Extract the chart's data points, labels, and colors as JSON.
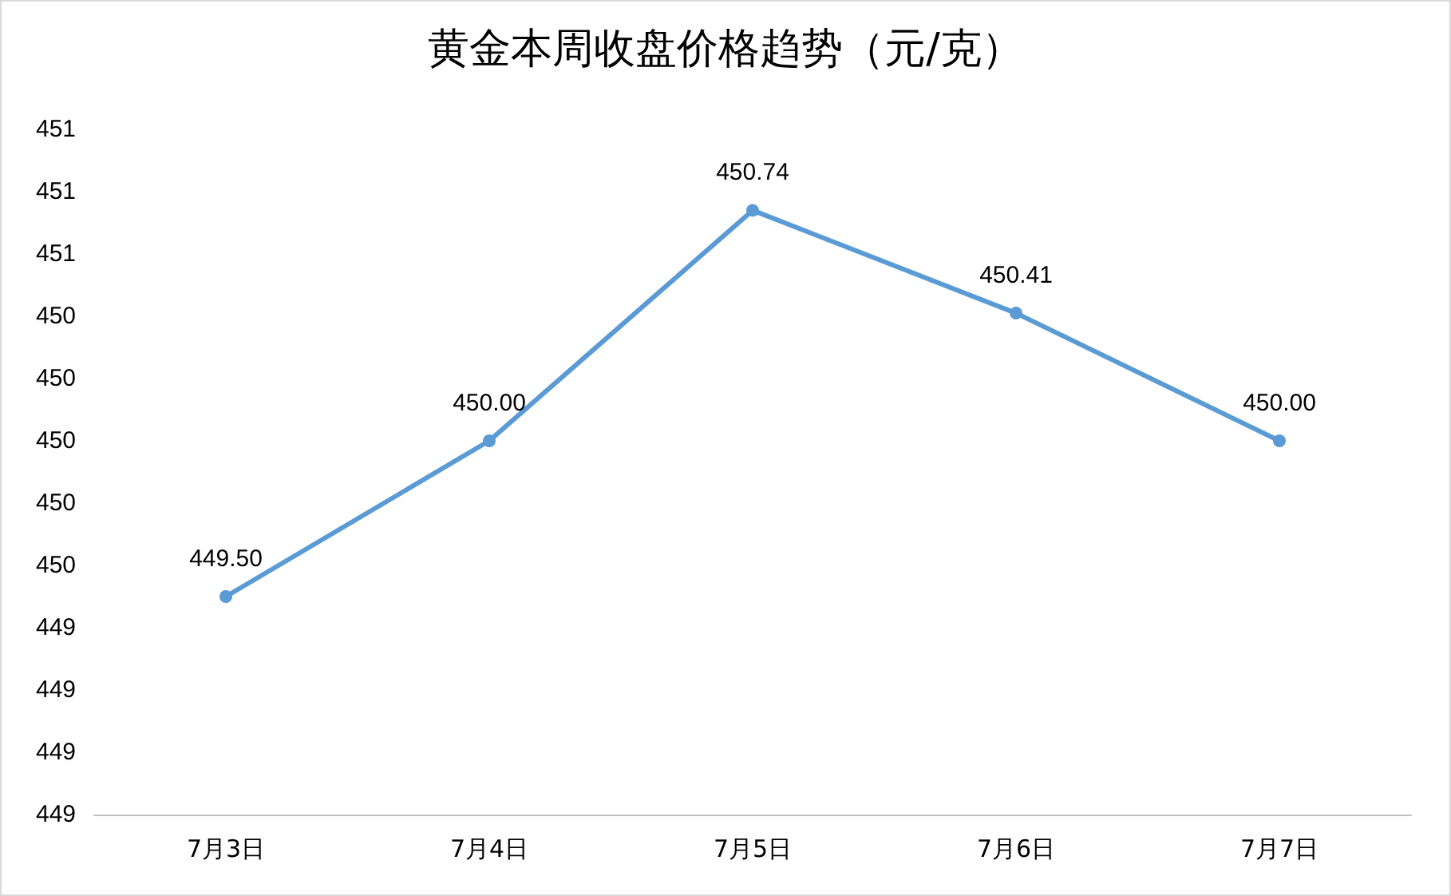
{
  "chart_data": {
    "type": "line",
    "title": "黄金本周收盘价格趋势（元/克）",
    "categories": [
      "7月3日",
      "7月4日",
      "7月5日",
      "7月6日",
      "7月7日"
    ],
    "series": [
      {
        "color": "#5b9bd5",
        "values": [
          449.5,
          450.0,
          450.74,
          450.41,
          450.0
        ],
        "value_labels": [
          "449.50",
          "450.00",
          "450.74",
          "450.41",
          "450.00"
        ]
      }
    ],
    "ylim": [
      448.8,
      451.0
    ],
    "yticks": [
      {
        "value": 448.8,
        "label": "449"
      },
      {
        "value": 449.0,
        "label": "449"
      },
      {
        "value": 449.2,
        "label": "449"
      },
      {
        "value": 449.4,
        "label": "449"
      },
      {
        "value": 449.6,
        "label": "450"
      },
      {
        "value": 449.8,
        "label": "450"
      },
      {
        "value": 450.0,
        "label": "450"
      },
      {
        "value": 450.2,
        "label": "450"
      },
      {
        "value": 450.4,
        "label": "450"
      },
      {
        "value": 450.6,
        "label": "451"
      },
      {
        "value": 450.8,
        "label": "451"
      },
      {
        "value": 451.0,
        "label": "451"
      }
    ],
    "marker": "circle",
    "line_style": "solid"
  }
}
